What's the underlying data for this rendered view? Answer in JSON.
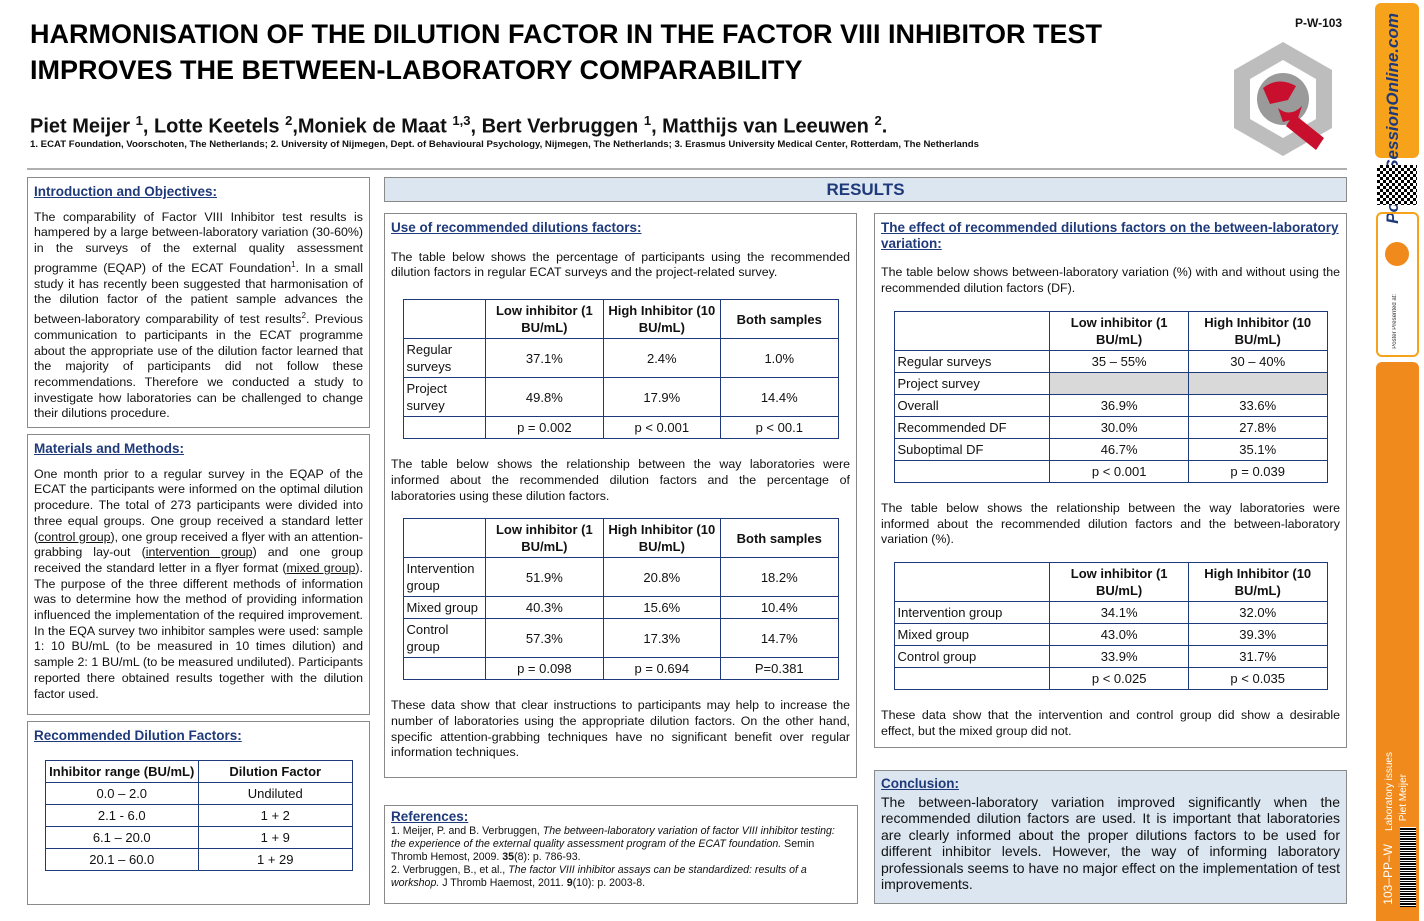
{
  "header": {
    "title_lines": [
      "HARMONISATION OF THE DILUTION FACTOR IN THE FACTOR VIII INHIBITOR TEST",
      "IMPROVES THE BETWEEN-LABORATORY COMPARABILITY"
    ],
    "code": "P-W-103",
    "authors": [
      {
        "text": "Piet Meijer ",
        "sup": "1"
      },
      {
        "text": ", Lotte Keetels ",
        "sup": "2"
      },
      {
        "text": ",Moniek de Maat ",
        "sup": "1,3"
      },
      {
        "text": ", Bert Verbruggen ",
        "sup": "1"
      },
      {
        "text": ", Matthijs van Leeuwen ",
        "sup": "2"
      },
      {
        "text": "."
      }
    ],
    "affiliations": "1. ECAT Foundation, Voorschoten, The Netherlands; 2. University of Nijmegen, Dept. of Behavioural Psychology, Nijmegen, The Netherlands; 3. Erasmus University Medical Center, Rotterdam, The Netherlands"
  },
  "intro": {
    "heading": "Introduction and Objectives:",
    "paragraph": [
      {
        "text": "The comparability of Factor VIII Inhibitor test results is hampered by a large between-laboratory variation (30-60%) in the surveys of the external quality assessment programme (EQAP) of the ECAT Foundation"
      },
      {
        "text": "1",
        "style": "sup"
      },
      {
        "text": ". In a small study it has recently been suggested that harmonisation of the dilution factor of the patient sample advances the between-laboratory comparability of test results"
      },
      {
        "text": "2",
        "style": "sup"
      },
      {
        "text": ". Previous communication to participants in the ECAT programme about the appropriate use of the dilution factor learned that the majority of participants did not follow these recommendations. Therefore we conducted a study to investigate how laboratories can be challenged to change their dilutions procedure."
      }
    ]
  },
  "methods": {
    "heading": "Materials and Methods:",
    "paragraph": [
      {
        "text": "One month prior to a regular survey in the EQAP of the ECAT the participants were informed on the optimal dilution procedure. The total of 273 participants were divided into three equal groups. One group received a standard letter ("
      },
      {
        "text": "control group",
        "style": "u"
      },
      {
        "text": "), one group received a flyer with an attention-grabbing lay-out ("
      },
      {
        "text": "intervention group",
        "style": "u"
      },
      {
        "text": ") and one group received the standard letter in a flyer format ("
      },
      {
        "text": "mixed group",
        "style": "u"
      },
      {
        "text": "). The purpose of the three different methods of information was to determine how the method of providing information influenced the implementation of the required improvement. In the EQA survey two inhibitor samples were used: sample 1: 10 BU/mL (to be measured  in 10 times dilution) and sample 2: 1 BU/mL (to be measured undiluted). Participants reported there obtained results together with the dilution factor used."
      }
    ]
  },
  "dilution": {
    "heading": "Recommended Dilution Factors:",
    "table": {
      "header": [
        "Inhibitor range (BU/mL)",
        "Dilution Factor"
      ],
      "rows": [
        {
          "cells": [
            "0.0 – 2.0",
            "Undiluted"
          ]
        },
        {
          "cells": [
            "2.1 -  6.0",
            "1 + 2"
          ]
        },
        {
          "cells": [
            "6.1 – 20.0",
            "1 + 9"
          ]
        },
        {
          "cells": [
            "20.1 – 60.0",
            "1 + 29"
          ]
        }
      ]
    }
  },
  "results_heading": "RESULTS",
  "use": {
    "heading": "Use of recommended dilutions factors:",
    "p1": "The table below shows the percentage of participants using the recommended dilution factors in regular ECAT surveys and the project-related survey.",
    "table1": {
      "header": [
        "Low inhibitor (1 BU/mL)",
        "High Inhibitor (10 BU/mL)",
        "Both samples"
      ],
      "rows": [
        {
          "label": "Regular surveys",
          "cells": [
            "37.1%",
            "2.4%",
            "1.0%"
          ]
        },
        {
          "label": "Project survey",
          "cells": [
            "49.8%",
            "17.9%",
            "14.4%"
          ]
        }
      ],
      "footer": [
        "p = 0.002",
        "p < 0.001",
        "p < 00.1"
      ]
    },
    "p2": "The table below shows the relationship between the way laboratories were informed about the recommended dilution factors and the percentage of laboratories using these dilution factors.",
    "table2": {
      "header": [
        "Low inhibitor (1 BU/mL)",
        "High Inhibitor (10 BU/mL)",
        "Both samples"
      ],
      "rows": [
        {
          "label": "Intervention group",
          "cells": [
            "51.9%",
            "20.8%",
            "18.2%"
          ]
        },
        {
          "label": "Mixed group",
          "cells": [
            "40.3%",
            "15.6%",
            "10.4%"
          ]
        },
        {
          "label": "Control group",
          "cells": [
            "57.3%",
            "17.3%",
            "14.7%"
          ]
        }
      ],
      "footer": [
        "p = 0.098",
        "p = 0.694",
        "P=0.381"
      ]
    },
    "p3": "These data show that clear instructions to participants may help to increase the number of laboratories using the appropriate dilution factors. On the other hand, specific attention-grabbing techniques have no significant benefit over regular information techniques."
  },
  "references": {
    "heading": "References:",
    "items": [
      [
        {
          "text": "1. Meijer, P. and B. Verbruggen, "
        },
        {
          "text": "The between-laboratory variation of factor VIII inhibitor testing: the experience of the external quality assessment program of the ECAT foundation.",
          "style": "i"
        },
        {
          "text": "  Semin Thromb Hemost, 2009. "
        },
        {
          "text": "35",
          "style": "b"
        },
        {
          "text": "(8): p. 786-93."
        }
      ],
      [
        {
          "text": "2. Verbruggen, B., et al., "
        },
        {
          "text": "The factor VIII inhibitor assays can be standardized: results of a workshop.",
          "style": "i"
        },
        {
          "text": " J Thromb Haemost, 2011. "
        },
        {
          "text": "9",
          "style": "b"
        },
        {
          "text": "(10): p. 2003-8."
        }
      ]
    ]
  },
  "effect": {
    "heading": "The effect of recommended dilutions factors on the between-laboratory variation:",
    "p1": "The table below shows between-laboratory variation (%) with and without using the recommended dilution factors (DF).",
    "table1": {
      "header": [
        "Low inhibitor (1 BU/mL)",
        "High Inhibitor (10 BU/mL)"
      ],
      "rows": [
        {
          "label": "Regular surveys",
          "cells": [
            "35 – 55%",
            "30 – 40%"
          ]
        },
        {
          "label": "Project survey",
          "shaded": true
        },
        {
          "label": "Overall",
          "cells": [
            "36.9%",
            "33.6%"
          ]
        },
        {
          "label": "Recommended DF",
          "cells": [
            "30.0%",
            "27.8%"
          ]
        },
        {
          "label": "Suboptimal DF",
          "cells": [
            "46.7%",
            "35.1%"
          ]
        }
      ],
      "footer": [
        "p < 0.001",
        "p = 0.039"
      ]
    },
    "p2": "The table below shows the relationship between the way laboratories were informed about the recommended dilution factors and the between-laboratory variation (%).",
    "table2": {
      "header": [
        "Low inhibitor (1 BU/mL)",
        "High Inhibitor (10 BU/mL)"
      ],
      "rows": [
        {
          "label": "Intervention group",
          "cells": [
            "34.1%",
            "32.0%"
          ]
        },
        {
          "label": "Mixed group",
          "cells": [
            "43.0%",
            "39.3%"
          ]
        },
        {
          "label": "Control group",
          "cells": [
            "33.9%",
            "31.7%"
          ]
        }
      ],
      "footer": [
        "p < 0.025",
        "p < 0.035"
      ]
    },
    "p3": "These data show that the intervention and control group did show a desirable effect, but the mixed group did not."
  },
  "conclusion": {
    "heading": "Conclusion:",
    "text": "The between-laboratory variation improved significantly when the recommended dilution factors are used. It is important that laboratories are clearly informed about the proper dilutions factors to be used for different inhibitor levels. However, the way of informing laboratory professionals seems to have no major effect on the implementation of test improvements."
  },
  "sidebar": {
    "logo": "PosterSessionOnline.com",
    "presented": "Poster Presented at:",
    "topic": "Laboratory issues",
    "author": "Piet Meijer",
    "code": "103–PP–W"
  }
}
